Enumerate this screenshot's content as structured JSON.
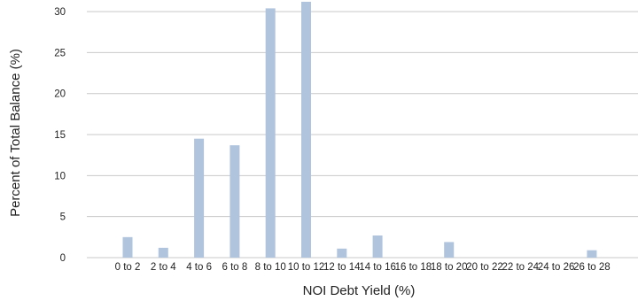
{
  "chart_data": {
    "type": "bar",
    "categories": [
      "0 to 2",
      "2 to 4",
      "4 to 6",
      "6 to 8",
      "8 to 10",
      "10 to 12",
      "12 to 14",
      "14 to 16",
      "16 to 18",
      "18 to 20",
      "20 to 22",
      "22 to 24",
      "24 to 26",
      "26 to 28"
    ],
    "values": [
      2.5,
      1.2,
      14.5,
      13.7,
      30.4,
      31.2,
      1.1,
      2.7,
      0,
      1.9,
      0,
      0,
      0,
      0.9
    ],
    "xlabel": "NOI Debt Yield (%)",
    "ylabel": "Percent of Total Balance (%)",
    "ylim": [
      0,
      31.2
    ],
    "yticks": [
      0,
      5,
      10,
      15,
      20,
      25,
      30
    ],
    "grid": "horizontal",
    "bar_color": "#b0c4de"
  }
}
